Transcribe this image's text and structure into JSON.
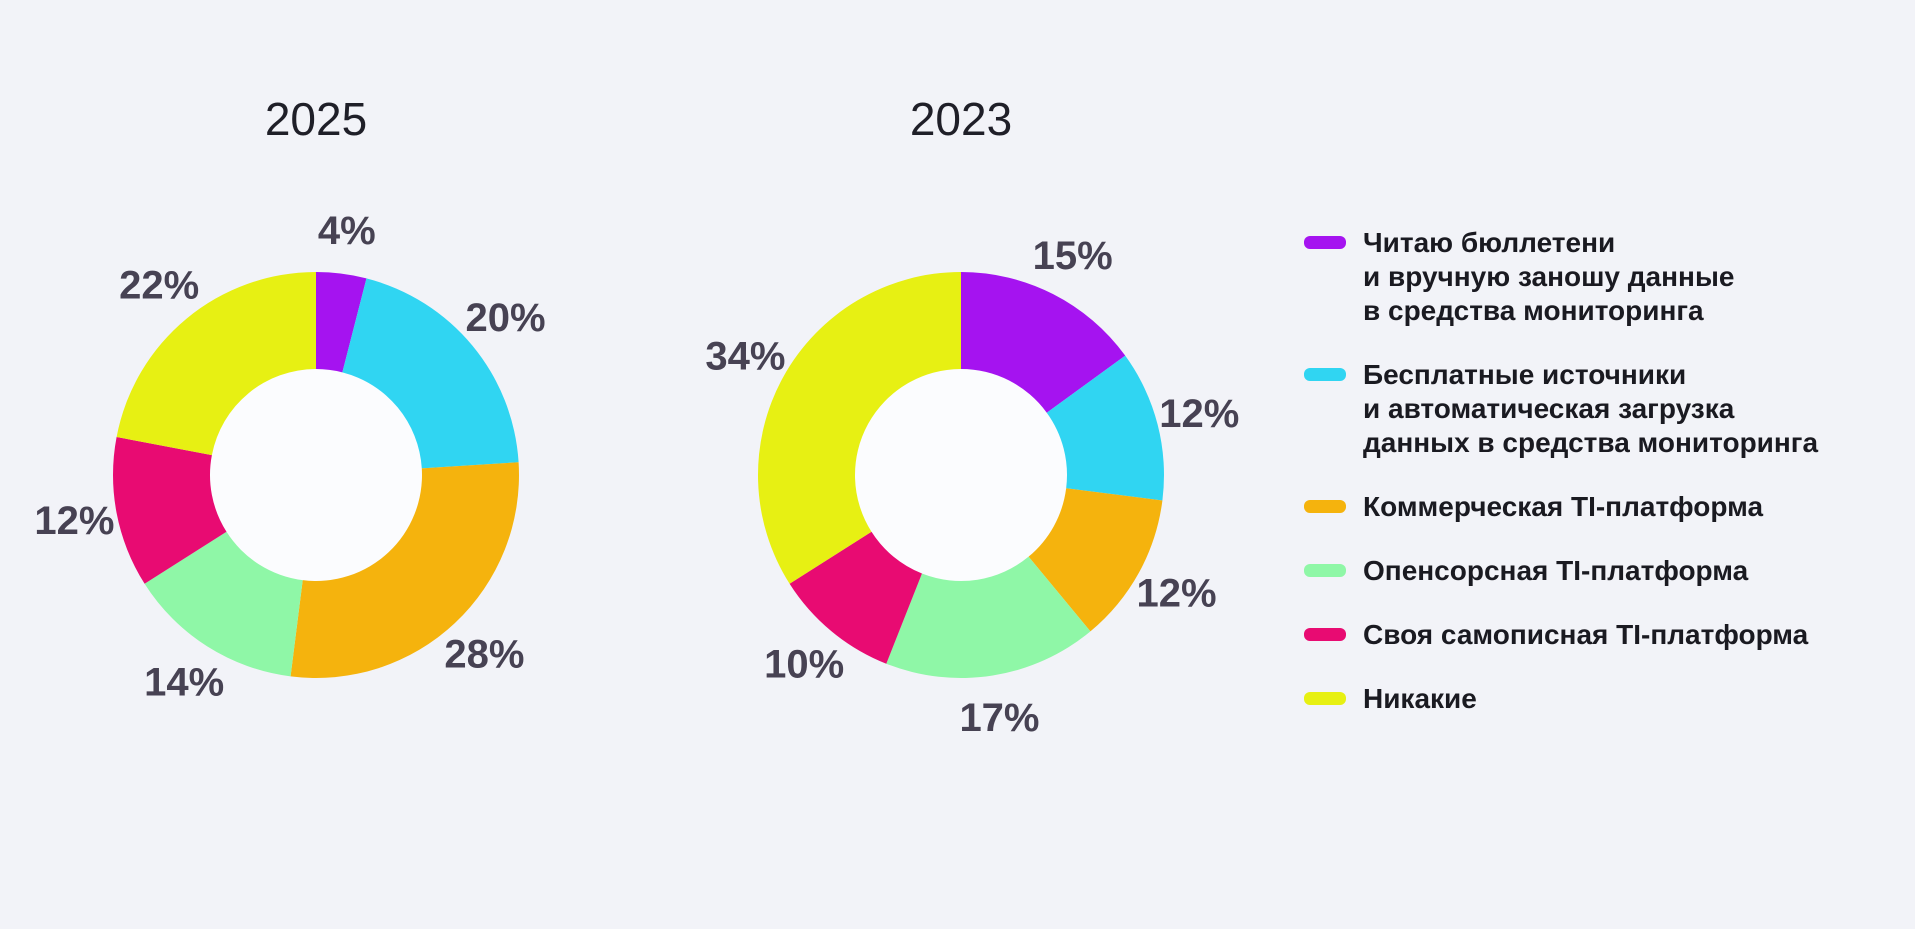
{
  "page": {
    "background": "#F2F3F8"
  },
  "chart_data": [
    {
      "type": "pie",
      "subtype": "donut",
      "title": "2025",
      "direction": "clockwise",
      "start_angle_deg": 0,
      "categories": [
        "Читаю бюллетени и вручную заношу данные в средства мониторинга",
        "Бесплатные источники и автоматическая загрузка данных в средства мониторинга",
        "Коммерческая TI-платформа",
        "Опенсорсная TI-платформа",
        "Своя самописная TI-платформа",
        "Никакие"
      ],
      "values": [
        4,
        20,
        28,
        14,
        12,
        22
      ],
      "labels": [
        "4%",
        "20%",
        "28%",
        "14%",
        "12%",
        "22%"
      ],
      "colors": [
        "#A513F0",
        "#30D5F2",
        "#F5B30D",
        "#8FF7A7",
        "#E80B72",
        "#E7F013"
      ],
      "legend_position": "right"
    },
    {
      "type": "pie",
      "subtype": "donut",
      "title": "2023",
      "direction": "clockwise",
      "start_angle_deg": 0,
      "categories": [
        "Читаю бюллетени и вручную заношу данные в средства мониторинга",
        "Бесплатные источники и автоматическая загрузка данных в средства мониторинга",
        "Коммерческая TI-платформа",
        "Опенсорсная TI-платформа",
        "Своя самописная TI-платформа",
        "Никакие"
      ],
      "values": [
        15,
        12,
        12,
        17,
        10,
        34
      ],
      "labels": [
        "15%",
        "12%",
        "12%",
        "17%",
        "10%",
        "34%"
      ],
      "colors": [
        "#A513F0",
        "#30D5F2",
        "#F5B30D",
        "#8FF7A7",
        "#E80B72",
        "#E7F013"
      ],
      "legend_position": "right"
    }
  ],
  "legend": {
    "items": [
      {
        "label": "Читаю бюллетени\nи вручную заношу данные\nв средства мониторинга",
        "color": "#A513F0"
      },
      {
        "label": "Бесплатные источники\nи автоматическая загрузка\nданных в средства мониторинга",
        "color": "#30D5F2"
      },
      {
        "label": "Коммерческая TI-платформа",
        "color": "#F5B30D"
      },
      {
        "label": "Опенсорсная TI-платформа",
        "color": "#8FF7A7"
      },
      {
        "label": "Своя самописная TI-платформа",
        "color": "#E80B72"
      },
      {
        "label": "Никакие",
        "color": "#E7F013"
      }
    ]
  },
  "style": {
    "hole_color": "#FBFCFE",
    "label_color": "#474253",
    "title_color": "#1F1F28",
    "legend_text_color": "#1A1A21"
  }
}
